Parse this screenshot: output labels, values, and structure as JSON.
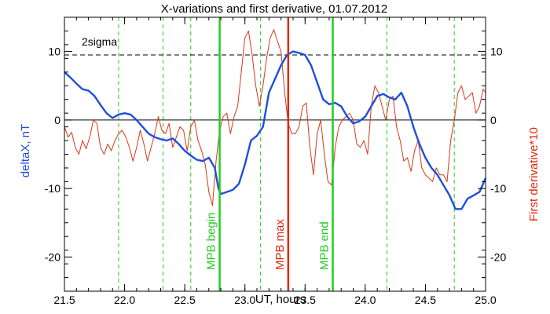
{
  "chart_data": {
    "type": "line",
    "title": "X-variations and first derivative, 01.07.2012",
    "xlabel": "UT, hours",
    "ylabel_left": "deltaX, nT",
    "ylabel_right": "First derivative*10",
    "xlim": [
      21.5,
      25.0
    ],
    "ylim": [
      -25,
      15
    ],
    "x_ticks": [
      "21.5",
      "22.0",
      "22.5",
      "23.0",
      "23.5",
      "24.0",
      "24.5",
      "25.0"
    ],
    "y_ticks_left": [
      "-20",
      "-10",
      "0",
      "10"
    ],
    "y_ticks_right": [
      "-20",
      "-10",
      "0",
      "10"
    ],
    "threshold": {
      "label": "2sigma",
      "y": 9.5,
      "style": "dashed",
      "color": "#000000"
    },
    "zero_line": 0,
    "colors": {
      "deltax": "#1f4fd8",
      "derivative": "#d8371a",
      "green": "#22cc22",
      "red": "#e02a10",
      "left_label": "#1f4fd8",
      "right_label": "#e02a10"
    },
    "vlines_dashed": [
      21.95,
      22.32,
      22.55,
      23.13,
      24.18,
      24.74
    ],
    "markers": [
      {
        "x": 22.79,
        "label": "MPB begin",
        "color": "#22cc22"
      },
      {
        "x": 23.36,
        "label": "MPB max",
        "color": "#e02a10"
      },
      {
        "x": 23.73,
        "label": "MPB end",
        "color": "#22cc22"
      }
    ],
    "series": [
      {
        "id": "deltax",
        "x": [
          21.5,
          21.55,
          21.6,
          21.65,
          21.7,
          21.75,
          21.8,
          21.85,
          21.9,
          21.95,
          22.0,
          22.05,
          22.1,
          22.15,
          22.2,
          22.25,
          22.3,
          22.35,
          22.4,
          22.45,
          22.5,
          22.55,
          22.6,
          22.65,
          22.7,
          22.75,
          22.78,
          22.8,
          22.85,
          22.9,
          22.95,
          23.0,
          23.05,
          23.1,
          23.15,
          23.2,
          23.25,
          23.3,
          23.35,
          23.4,
          23.45,
          23.5,
          23.55,
          23.6,
          23.65,
          23.7,
          23.75,
          23.8,
          23.85,
          23.9,
          23.95,
          24.0,
          24.05,
          24.1,
          24.15,
          24.2,
          24.25,
          24.3,
          24.35,
          24.4,
          24.45,
          24.5,
          24.55,
          24.6,
          24.65,
          24.7,
          24.75,
          24.8,
          24.85,
          24.9,
          24.95,
          25.0
        ],
        "y": [
          7,
          6.2,
          5.3,
          4.5,
          4.3,
          3.5,
          2.2,
          1,
          0.3,
          0.8,
          1,
          0.8,
          0,
          -1,
          -2,
          -2.5,
          -2.8,
          -3,
          -2.7,
          -3.5,
          -4.5,
          -5.2,
          -5.8,
          -6,
          -5.5,
          -7,
          -10,
          -10.8,
          -10.5,
          -10.2,
          -9.3,
          -6.5,
          -3,
          -2.3,
          -1,
          4,
          6,
          8,
          9.5,
          10,
          9.8,
          9.5,
          8,
          5.5,
          3,
          2.3,
          2.5,
          2,
          0.5,
          -0.5,
          -0.2,
          0.5,
          2,
          3.5,
          3.8,
          3.3,
          3,
          4,
          2,
          -1,
          -3.5,
          -5.5,
          -7,
          -8,
          -9.5,
          -11,
          -13,
          -13,
          -11.5,
          -11,
          -10.5,
          -8.5
        ]
      },
      {
        "id": "derivative",
        "x": [
          21.5,
          21.53,
          21.56,
          21.59,
          21.62,
          21.65,
          21.68,
          21.71,
          21.74,
          21.77,
          21.8,
          21.83,
          21.86,
          21.89,
          21.92,
          21.95,
          21.98,
          22.01,
          22.04,
          22.07,
          22.1,
          22.13,
          22.16,
          22.19,
          22.22,
          22.25,
          22.28,
          22.31,
          22.34,
          22.37,
          22.4,
          22.43,
          22.46,
          22.49,
          22.52,
          22.55,
          22.58,
          22.61,
          22.64,
          22.67,
          22.7,
          22.73,
          22.76,
          22.79,
          22.82,
          22.85,
          22.88,
          22.91,
          22.94,
          22.97,
          23.0,
          23.03,
          23.06,
          23.09,
          23.12,
          23.15,
          23.18,
          23.21,
          23.24,
          23.27,
          23.3,
          23.33,
          23.36,
          23.39,
          23.42,
          23.45,
          23.48,
          23.51,
          23.54,
          23.57,
          23.6,
          23.63,
          23.66,
          23.69,
          23.72,
          23.75,
          23.78,
          23.81,
          23.84,
          23.87,
          23.9,
          23.93,
          23.96,
          23.99,
          24.02,
          24.05,
          24.08,
          24.11,
          24.14,
          24.17,
          24.2,
          24.23,
          24.26,
          24.29,
          24.32,
          24.35,
          24.38,
          24.41,
          24.44,
          24.47,
          24.5,
          24.53,
          24.56,
          24.59,
          24.62,
          24.65,
          24.68,
          24.71,
          24.74,
          24.77,
          24.8,
          24.83,
          24.86,
          24.89,
          24.92,
          24.95,
          24.98,
          25.0
        ],
        "y": [
          -1,
          -2.5,
          -1.8,
          -4,
          -5,
          -3,
          -4.2,
          -2.5,
          0,
          -0.5,
          -4,
          -5,
          -3.5,
          -4.5,
          -3,
          -2,
          -1.5,
          -2.5,
          -4,
          -6,
          -4,
          -1.5,
          -3.5,
          -6,
          -4,
          -2,
          0.5,
          -1.5,
          -2,
          -0.5,
          -4,
          -2.5,
          -1,
          -1.5,
          -4.5,
          -1,
          0,
          -3,
          -4.5,
          -6.5,
          -10.5,
          -12.5,
          -6,
          -1.5,
          0.5,
          1,
          -2,
          0.5,
          2,
          7,
          12,
          13,
          9.5,
          5,
          2,
          5,
          9,
          12,
          13.2,
          11.5,
          10,
          4,
          -0.5,
          -2,
          -2,
          -1,
          2,
          2.5,
          -4,
          -8,
          -2,
          0,
          -5,
          -9,
          -9.5,
          -4,
          -1,
          0,
          0.5,
          1,
          0,
          -3.5,
          -4,
          -3,
          -5,
          2,
          5,
          4,
          2,
          0,
          3,
          3.5,
          -1,
          -3,
          -6,
          -5.5,
          -7.5,
          -4.5,
          -3,
          -7,
          -8,
          -8.5,
          -9,
          -7,
          -8,
          -8,
          -9,
          -3,
          0,
          4,
          5,
          3,
          3.5,
          4,
          1,
          2,
          4.5,
          4
        ]
      }
    ]
  }
}
